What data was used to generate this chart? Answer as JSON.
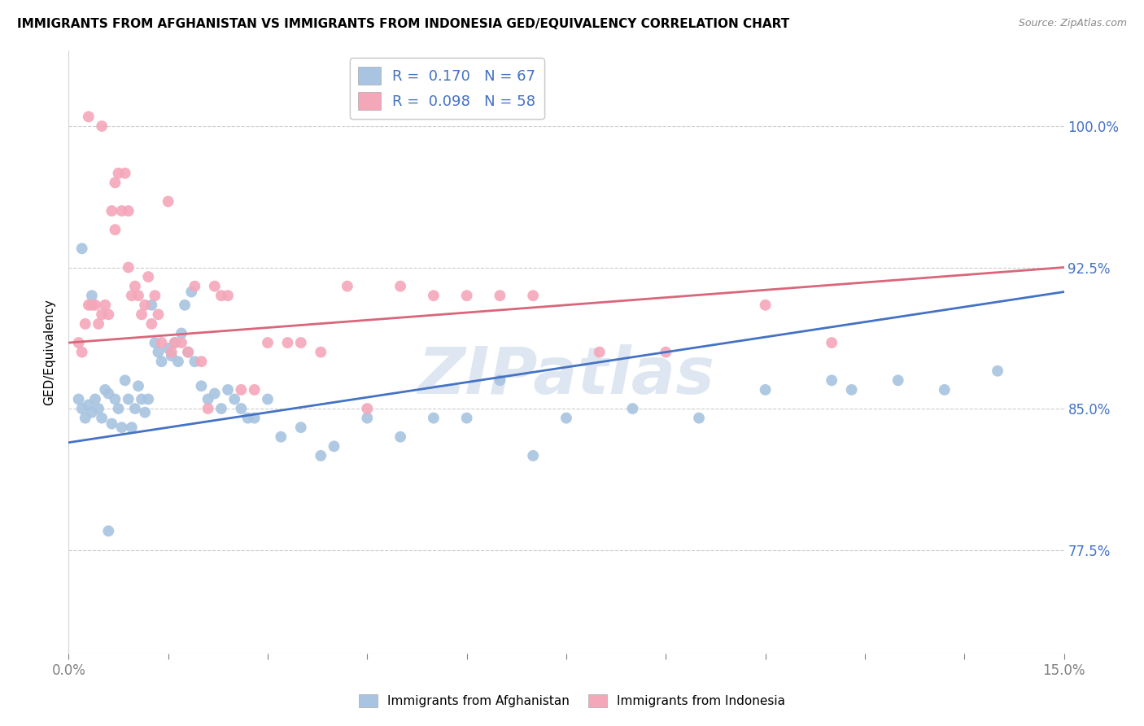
{
  "title": "IMMIGRANTS FROM AFGHANISTAN VS IMMIGRANTS FROM INDONESIA GED/EQUIVALENCY CORRELATION CHART",
  "source": "Source: ZipAtlas.com",
  "ylabel": "GED/Equivalency",
  "ytick_vals": [
    77.5,
    85.0,
    92.5,
    100.0
  ],
  "ytick_labels": [
    "77.5%",
    "85.0%",
    "92.5%",
    "100.0%"
  ],
  "xlim": [
    0.0,
    15.0
  ],
  "ylim": [
    72.0,
    104.0
  ],
  "afghanistan_color": "#a8c4e0",
  "afghanistan_line_color": "#4472c4",
  "indonesia_color": "#f4a7b9",
  "indonesia_line_color": "#d9667a",
  "afghanistan_R": 0.17,
  "afghanistan_N": 67,
  "indonesia_R": 0.098,
  "indonesia_N": 58,
  "afg_line_x0": 0.0,
  "afg_line_y0": 83.2,
  "afg_line_x1": 15.0,
  "afg_line_y1": 91.2,
  "idc_line_x0": 0.0,
  "idc_line_y0": 88.5,
  "idc_line_x1": 15.0,
  "idc_line_y1": 92.5,
  "afghanistan_scatter_x": [
    0.15,
    0.2,
    0.25,
    0.3,
    0.35,
    0.4,
    0.45,
    0.5,
    0.55,
    0.6,
    0.65,
    0.7,
    0.75,
    0.8,
    0.85,
    0.9,
    0.95,
    1.0,
    1.05,
    1.1,
    1.15,
    1.2,
    1.25,
    1.3,
    1.35,
    1.4,
    1.5,
    1.55,
    1.6,
    1.65,
    1.7,
    1.75,
    1.8,
    1.85,
    1.9,
    2.0,
    2.1,
    2.2,
    2.3,
    2.4,
    2.5,
    2.6,
    2.7,
    2.8,
    3.0,
    3.2,
    3.5,
    3.8,
    4.0,
    4.5,
    5.0,
    5.5,
    6.0,
    6.5,
    7.0,
    7.5,
    8.5,
    9.5,
    10.5,
    11.5,
    11.8,
    12.5,
    13.2,
    14.0,
    0.2,
    0.35,
    0.6
  ],
  "afghanistan_scatter_y": [
    85.5,
    85.0,
    84.5,
    85.2,
    84.8,
    85.5,
    85.0,
    84.5,
    86.0,
    85.8,
    84.2,
    85.5,
    85.0,
    84.0,
    86.5,
    85.5,
    84.0,
    85.0,
    86.2,
    85.5,
    84.8,
    85.5,
    90.5,
    88.5,
    88.0,
    87.5,
    88.2,
    87.8,
    88.5,
    87.5,
    89.0,
    90.5,
    88.0,
    91.2,
    87.5,
    86.2,
    85.5,
    85.8,
    85.0,
    86.0,
    85.5,
    85.0,
    84.5,
    84.5,
    85.5,
    83.5,
    84.0,
    82.5,
    83.0,
    84.5,
    83.5,
    84.5,
    84.5,
    86.5,
    82.5,
    84.5,
    85.0,
    84.5,
    86.0,
    86.5,
    86.0,
    86.5,
    86.0,
    87.0,
    93.5,
    91.0,
    78.5
  ],
  "indonesia_scatter_x": [
    0.15,
    0.2,
    0.25,
    0.3,
    0.35,
    0.4,
    0.45,
    0.5,
    0.55,
    0.6,
    0.65,
    0.7,
    0.75,
    0.8,
    0.85,
    0.9,
    0.95,
    1.0,
    1.05,
    1.1,
    1.15,
    1.2,
    1.25,
    1.3,
    1.35,
    1.4,
    1.5,
    1.55,
    1.6,
    1.7,
    1.8,
    1.9,
    2.0,
    2.1,
    2.2,
    2.3,
    2.4,
    2.6,
    2.8,
    3.0,
    3.3,
    3.5,
    3.8,
    4.2,
    4.5,
    5.0,
    5.5,
    6.0,
    6.5,
    7.0,
    8.0,
    9.0,
    10.5,
    11.5,
    0.3,
    0.5,
    0.7,
    0.9
  ],
  "indonesia_scatter_y": [
    88.5,
    88.0,
    89.5,
    90.5,
    90.5,
    90.5,
    89.5,
    90.0,
    90.5,
    90.0,
    95.5,
    97.0,
    97.5,
    95.5,
    97.5,
    95.5,
    91.0,
    91.5,
    91.0,
    90.0,
    90.5,
    92.0,
    89.5,
    91.0,
    90.0,
    88.5,
    96.0,
    88.0,
    88.5,
    88.5,
    88.0,
    91.5,
    87.5,
    85.0,
    91.5,
    91.0,
    91.0,
    86.0,
    86.0,
    88.5,
    88.5,
    88.5,
    88.0,
    91.5,
    85.0,
    91.5,
    91.0,
    91.0,
    91.0,
    91.0,
    88.0,
    88.0,
    90.5,
    88.5,
    100.5,
    100.0,
    94.5,
    92.5
  ],
  "watermark": "ZIPatlas",
  "background_color": "#ffffff",
  "grid_color": "#cccccc",
  "tick_color_right": "#4472c4",
  "tick_color_bottom": "#4472c4",
  "legend_label_afg": "Immigrants from Afghanistan",
  "legend_label_idc": "Immigrants from Indonesia"
}
